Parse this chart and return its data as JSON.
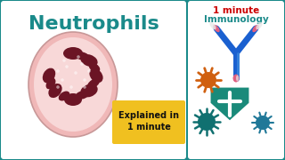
{
  "bg_color": "#1a8a8a",
  "left_panel_bg": "#ffffff",
  "right_panel_bg": "#ffffff",
  "title_text": "Neutrophils",
  "title_color": "#1a8a8a",
  "title_fontsize": 16,
  "explained_box_color": "#f0c020",
  "explained_text_line1": "Explained in",
  "explained_text_line2": "1 minute",
  "explained_text_color": "#111111",
  "right_top_text1": "1 minute",
  "right_top_color1": "#cc0000",
  "right_top_text2": "Immunology",
  "right_top_color2": "#1a8a8a",
  "cell_outer_color": "#f0b8b8",
  "cell_inner_color": "#f8d8d8",
  "nucleus_color": "#6b1525",
  "nucleus_lighter": "#7a1a2a",
  "antibody_blue": "#1a60d0",
  "antibody_blue2": "#4090e0",
  "antibody_pink": "#e06080",
  "antibody_white": "#e8e8e8",
  "shield_color": "#1a8a7a",
  "shield_light": "#20a090",
  "germ_orange": "#d06010",
  "germ_teal_dark": "#107070",
  "germ_teal_blue": "#207898"
}
